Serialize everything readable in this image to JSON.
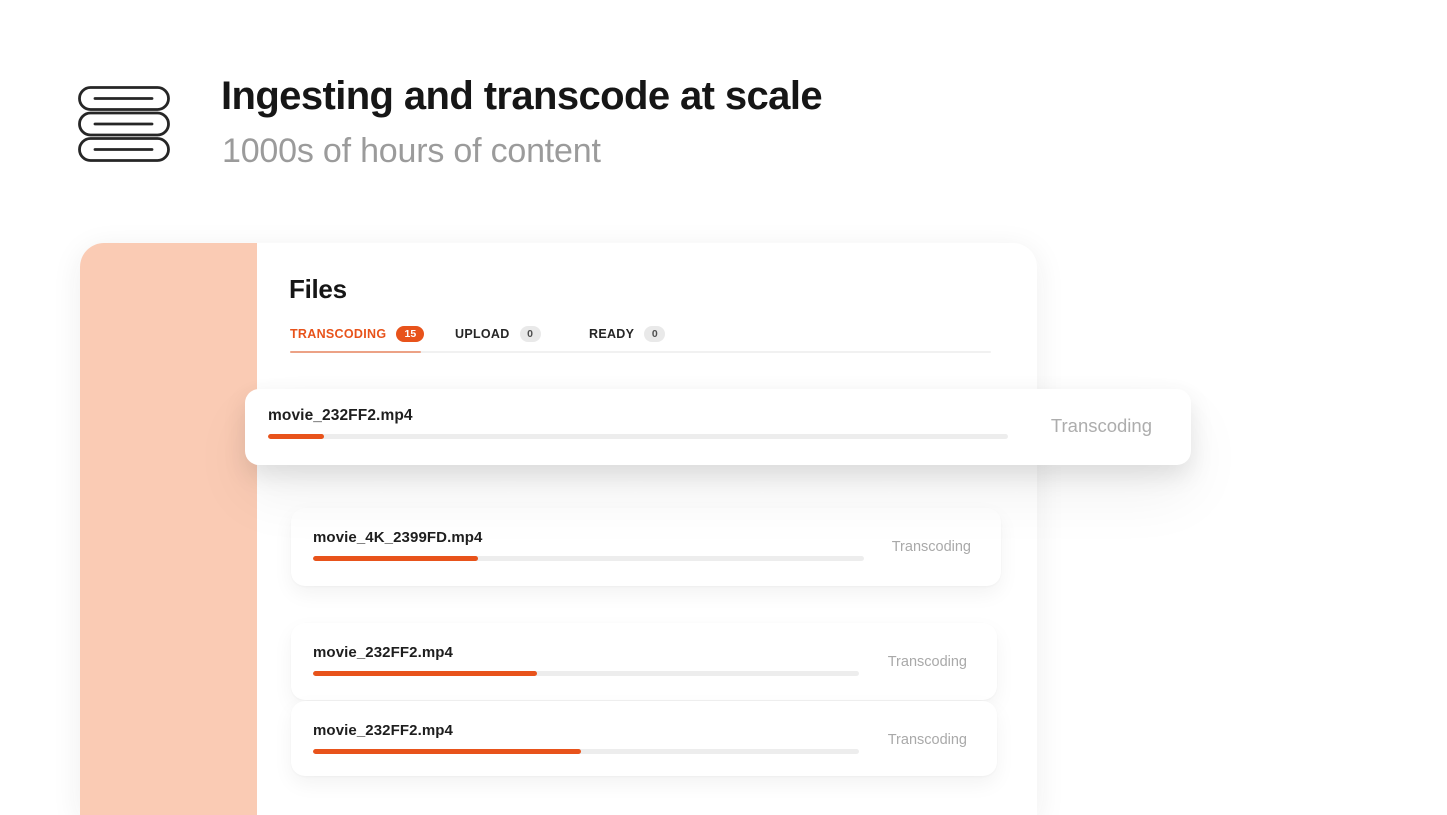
{
  "header": {
    "title": "Ingesting and transcode at scale",
    "subtitle": "1000s of hours of content"
  },
  "panel": {
    "title": "Files",
    "tabs": [
      {
        "label": "TRANSCODING",
        "count": "15",
        "active": true
      },
      {
        "label": "UPLOAD",
        "count": "0",
        "active": false
      },
      {
        "label": "READY",
        "count": "0",
        "active": false
      }
    ],
    "dragging_file": {
      "name": "movie_232FF2.mp4",
      "status": "Transcoding",
      "progress": 7.5
    },
    "files": [
      {
        "name": "movie_4K_2399FD.mp4",
        "status": "Transcoding",
        "progress": 30
      },
      {
        "name": "movie_232FF2.mp4",
        "status": "Transcoding",
        "progress": 41
      },
      {
        "name": "movie_232FF2.mp4",
        "status": "Transcoding",
        "progress": 49
      }
    ]
  },
  "icons": {
    "logo": "stack-of-layers-icon"
  },
  "colors": {
    "accent": "#E8531B",
    "peach": "#FACBB4",
    "muted": "#A9A9A9",
    "track": "#EDEDED",
    "ink": "#161616",
    "subtitle-gray": "#9B9B9B",
    "badge-gray-bg": "#E9E9E9",
    "badge-gray-text": "#4F4F4F",
    "tabline": "#F1F1F1"
  }
}
